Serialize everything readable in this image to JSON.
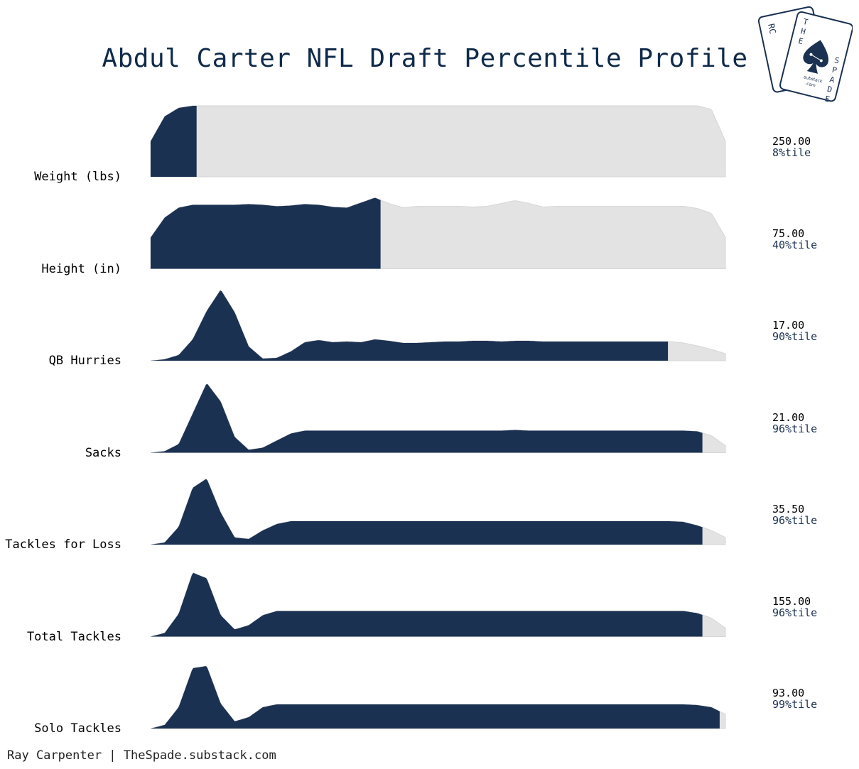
{
  "title": "Abdul Carter NFL Draft Percentile Profile",
  "footer": "Ray Carpenter | TheSpade.substack.com",
  "logo": {
    "top_text": "RC",
    "words": [
      "T",
      "H",
      "E",
      "S",
      "P",
      "A",
      "D",
      "E"
    ],
    "substack": ".substack",
    "dotcom": ".com"
  },
  "colors": {
    "fill": "#1b3152",
    "background_ridge": "#e3e3e3",
    "title": "#0f2a4a"
  },
  "chart_data": {
    "type": "area",
    "title": "Abdul Carter NFL Draft Percentile Profile",
    "rows": [
      {
        "label": "Weight (lbs)",
        "value": "250.00",
        "percentile_label": "8%tile",
        "percentile": 8,
        "profile": [
          0.5,
          0.85,
          0.97,
          1,
          1,
          1,
          1,
          1,
          1,
          1,
          1,
          1,
          1,
          1,
          1,
          1,
          1,
          1,
          1,
          1,
          1,
          1,
          1,
          1,
          1,
          1,
          1,
          1,
          1,
          1,
          1,
          1,
          1,
          1,
          1,
          1,
          1,
          1,
          1,
          1,
          0.95,
          0.5
        ]
      },
      {
        "label": "Height (in)",
        "value": "75.00",
        "percentile_label": "40%tile",
        "percentile": 40,
        "profile": [
          0.44,
          0.72,
          0.86,
          0.9,
          0.9,
          0.9,
          0.9,
          0.91,
          0.9,
          0.88,
          0.89,
          0.91,
          0.9,
          0.87,
          0.86,
          0.93,
          1.0,
          0.92,
          0.86,
          0.88,
          0.88,
          0.88,
          0.88,
          0.87,
          0.88,
          0.92,
          0.96,
          0.92,
          0.87,
          0.88,
          0.88,
          0.88,
          0.88,
          0.88,
          0.88,
          0.88,
          0.88,
          0.88,
          0.88,
          0.85,
          0.78,
          0.44
        ]
      },
      {
        "label": "QB Hurries",
        "value": "17.00",
        "percentile_label": "90%tile",
        "percentile": 90,
        "profile": [
          0.0,
          0.02,
          0.08,
          0.3,
          0.7,
          1.0,
          0.68,
          0.2,
          0.03,
          0.04,
          0.13,
          0.26,
          0.29,
          0.26,
          0.27,
          0.26,
          0.3,
          0.28,
          0.25,
          0.25,
          0.26,
          0.27,
          0.27,
          0.28,
          0.28,
          0.27,
          0.28,
          0.28,
          0.27,
          0.27,
          0.27,
          0.27,
          0.27,
          0.27,
          0.27,
          0.27,
          0.27,
          0.27,
          0.25,
          0.21,
          0.16,
          0.1
        ]
      },
      {
        "label": "Sacks",
        "value": "21.00",
        "percentile_label": "96%tile",
        "percentile": 96,
        "profile": [
          0.0,
          0.02,
          0.12,
          0.55,
          0.98,
          0.72,
          0.22,
          0.04,
          0.07,
          0.17,
          0.27,
          0.31,
          0.31,
          0.31,
          0.31,
          0.31,
          0.31,
          0.31,
          0.31,
          0.31,
          0.31,
          0.31,
          0.31,
          0.31,
          0.31,
          0.31,
          0.32,
          0.31,
          0.31,
          0.31,
          0.31,
          0.31,
          0.31,
          0.31,
          0.31,
          0.31,
          0.31,
          0.31,
          0.31,
          0.3,
          0.24,
          0.1
        ]
      },
      {
        "label": "Tackles for Loss",
        "value": "35.50",
        "percentile_label": "96%tile",
        "percentile": 96,
        "profile": [
          0.0,
          0.03,
          0.25,
          0.8,
          0.93,
          0.45,
          0.1,
          0.08,
          0.2,
          0.29,
          0.33,
          0.33,
          0.33,
          0.33,
          0.33,
          0.33,
          0.33,
          0.33,
          0.33,
          0.33,
          0.33,
          0.33,
          0.33,
          0.33,
          0.33,
          0.33,
          0.33,
          0.33,
          0.33,
          0.33,
          0.33,
          0.33,
          0.33,
          0.33,
          0.33,
          0.33,
          0.33,
          0.33,
          0.32,
          0.27,
          0.2,
          0.1
        ]
      },
      {
        "label": "Total Tackles",
        "value": "155.00",
        "percentile_label": "96%tile",
        "percentile": 96,
        "profile": [
          0.0,
          0.05,
          0.32,
          0.9,
          0.82,
          0.3,
          0.1,
          0.16,
          0.3,
          0.36,
          0.36,
          0.36,
          0.36,
          0.36,
          0.36,
          0.36,
          0.36,
          0.36,
          0.36,
          0.36,
          0.36,
          0.36,
          0.36,
          0.36,
          0.36,
          0.36,
          0.36,
          0.36,
          0.36,
          0.36,
          0.36,
          0.36,
          0.36,
          0.36,
          0.36,
          0.36,
          0.36,
          0.36,
          0.36,
          0.33,
          0.26,
          0.12
        ]
      },
      {
        "label": "Solo Tackles",
        "value": "93.00",
        "percentile_label": "99%tile",
        "percentile": 99,
        "profile": [
          0.0,
          0.05,
          0.3,
          0.85,
          0.88,
          0.35,
          0.1,
          0.16,
          0.3,
          0.34,
          0.34,
          0.34,
          0.34,
          0.34,
          0.34,
          0.34,
          0.34,
          0.34,
          0.34,
          0.34,
          0.34,
          0.34,
          0.34,
          0.34,
          0.34,
          0.34,
          0.34,
          0.34,
          0.34,
          0.34,
          0.34,
          0.34,
          0.34,
          0.34,
          0.34,
          0.34,
          0.34,
          0.34,
          0.34,
          0.33,
          0.3,
          0.2
        ]
      }
    ],
    "xlim": [
      0,
      100
    ],
    "legend": "none",
    "grid": false
  }
}
